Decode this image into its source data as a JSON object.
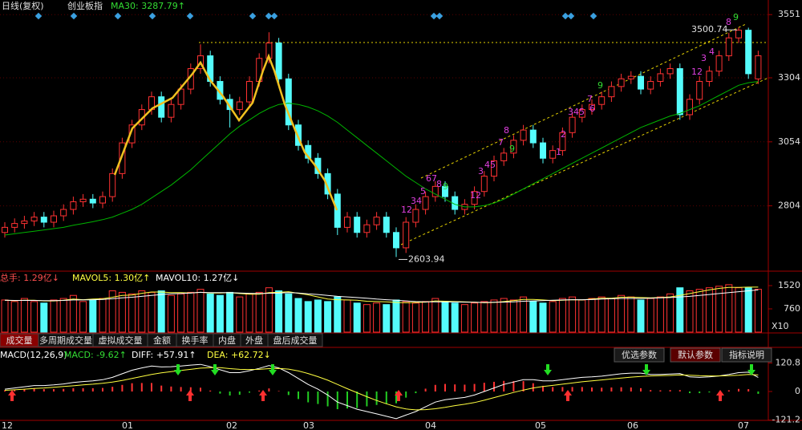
{
  "header": {
    "period": "日线(复权)",
    "name": "创业板指",
    "ma_label": "MA30: 3287.79↑"
  },
  "tabs": [
    "成交量",
    "多周期成交量",
    "虚拟成交量",
    "金额",
    "换手率",
    "内盘",
    "外盘",
    "盘后成交量"
  ],
  "buttons": [
    "优选参数",
    "默认参数",
    "指标说明"
  ],
  "chart_data": [
    {
      "type": "candlestick",
      "ylim": [
        2552,
        3608
      ],
      "yticks": [
        2804,
        3054,
        3304,
        3551
      ],
      "up_color": "#ff3232",
      "down_color": "#54fcfc",
      "x_labels": [
        "12",
        "01",
        "02",
        "03",
        "04",
        "05",
        "06",
        "07"
      ],
      "open": [
        2700,
        2720,
        2735,
        2745,
        2760,
        2740,
        2765,
        2790,
        2820,
        2830,
        2815,
        2840,
        2930,
        3050,
        3120,
        3180,
        3230,
        3150,
        3200,
        3260,
        3340,
        3390,
        3290,
        3220,
        3180,
        3210,
        3290,
        3380,
        3440,
        3300,
        3120,
        3040,
        2990,
        2930,
        2850,
        2720,
        2760,
        2700,
        2730,
        2760,
        2700,
        2640,
        2740,
        2790,
        2840,
        2880,
        2840,
        2790,
        2810,
        2860,
        2920,
        2980,
        3010,
        3060,
        3100,
        3050,
        2990,
        3020,
        3090,
        3150,
        3180,
        3200,
        3230,
        3270,
        3300,
        3310,
        3260,
        3290,
        3320,
        3340,
        3160,
        3220,
        3290,
        3330,
        3390,
        3460,
        3490,
        3300
      ],
      "high": [
        2740,
        2755,
        2765,
        2780,
        2780,
        2785,
        2810,
        2840,
        2850,
        2850,
        2860,
        2950,
        3070,
        3140,
        3200,
        3250,
        3250,
        3220,
        3280,
        3360,
        3435,
        3410,
        3310,
        3240,
        3230,
        3310,
        3400,
        3482,
        3460,
        3320,
        3140,
        3060,
        3010,
        2950,
        2870,
        2780,
        2780,
        2750,
        2780,
        2780,
        2720,
        2760,
        2810,
        2860,
        2900,
        2900,
        2860,
        2830,
        2880,
        2940,
        3000,
        3030,
        3080,
        3120,
        3120,
        3070,
        3040,
        3110,
        3170,
        3200,
        3220,
        3250,
        3290,
        3320,
        3330,
        3330,
        3310,
        3340,
        3360,
        3360,
        3240,
        3310,
        3350,
        3410,
        3480,
        3500.74,
        3500,
        3410
      ],
      "low": [
        2680,
        2700,
        2715,
        2725,
        2720,
        2720,
        2745,
        2770,
        2800,
        2795,
        2795,
        2820,
        2910,
        3030,
        3100,
        3160,
        3130,
        3130,
        3180,
        3240,
        3320,
        3270,
        3200,
        3110,
        3160,
        3190,
        3270,
        3360,
        3280,
        3100,
        3020,
        2970,
        2910,
        2830,
        2690,
        2700,
        2680,
        2680,
        2710,
        2680,
        2603.94,
        2620,
        2720,
        2770,
        2820,
        2820,
        2770,
        2770,
        2790,
        2840,
        2900,
        2960,
        2990,
        3040,
        3030,
        2970,
        2970,
        3000,
        3070,
        3130,
        3160,
        3180,
        3210,
        3250,
        3280,
        3240,
        3240,
        3270,
        3300,
        3140,
        3140,
        3200,
        3270,
        3310,
        3370,
        3440,
        3300,
        3280
      ],
      "close": [
        2720,
        2735,
        2745,
        2760,
        2740,
        2765,
        2790,
        2820,
        2830,
        2815,
        2840,
        2930,
        3050,
        3120,
        3180,
        3230,
        3150,
        3200,
        3260,
        3340,
        3390,
        3290,
        3220,
        3180,
        3210,
        3290,
        3380,
        3440,
        3300,
        3120,
        3040,
        2990,
        2930,
        2850,
        2720,
        2760,
        2700,
        2730,
        2760,
        2700,
        2640,
        2740,
        2790,
        2840,
        2880,
        2840,
        2790,
        2810,
        2860,
        2920,
        2980,
        3010,
        3060,
        3100,
        3050,
        2990,
        3020,
        3090,
        3150,
        3180,
        3200,
        3230,
        3270,
        3300,
        3310,
        3260,
        3290,
        3320,
        3340,
        3160,
        3220,
        3290,
        3330,
        3390,
        3460,
        3490,
        3320,
        3390
      ],
      "ma": {
        "color": "#00b400",
        "values": [
          2690,
          2695,
          2700,
          2705,
          2710,
          2715,
          2720,
          2728,
          2735,
          2742,
          2750,
          2760,
          2775,
          2790,
          2810,
          2835,
          2860,
          2885,
          2915,
          2945,
          2980,
          3015,
          3050,
          3085,
          3115,
          3140,
          3165,
          3185,
          3200,
          3205,
          3200,
          3190,
          3175,
          3155,
          3130,
          3100,
          3070,
          3040,
          3010,
          2980,
          2950,
          2920,
          2895,
          2870,
          2850,
          2830,
          2810,
          2800,
          2800,
          2805,
          2815,
          2830,
          2850,
          2870,
          2890,
          2910,
          2930,
          2950,
          2970,
          2990,
          3010,
          3030,
          3050,
          3070,
          3090,
          3110,
          3125,
          3140,
          3155,
          3165,
          3180,
          3195,
          3215,
          3235,
          3255,
          3275,
          3285,
          3290
        ]
      },
      "td_counts": [
        {
          "text": "12",
          "color": "#e040e0"
        },
        {
          "text": "34",
          "color": "#e040e0"
        },
        {
          "text": "5",
          "color": "#e040e0"
        },
        {
          "text": "67",
          "color": "#e040e0"
        },
        {
          "text": "8",
          "color": "#e040e0"
        },
        {
          "text": "9",
          "color": "#33dd33"
        },
        {
          "text": "12",
          "color": "#e040e0"
        },
        {
          "text": "3",
          "color": "#e040e0"
        },
        {
          "text": "45",
          "color": "#e040e0"
        },
        {
          "text": "7",
          "color": "#e040e0"
        },
        {
          "text": "8",
          "color": "#e040e0"
        },
        {
          "text": "9",
          "color": "#33dd33"
        },
        {
          "text": "1",
          "color": "#e040e0"
        },
        {
          "text": "2",
          "color": "#e040e0"
        },
        {
          "text": "345",
          "color": "#e040e0"
        },
        {
          "text": "6",
          "color": "#e040e0"
        },
        {
          "text": "7",
          "color": "#e040e0"
        },
        {
          "text": "9",
          "color": "#33dd33"
        },
        {
          "text": "12",
          "color": "#e040e0"
        },
        {
          "text": "3",
          "color": "#e040e0"
        },
        {
          "text": "4",
          "color": "#e040e0"
        },
        {
          "text": "8",
          "color": "#e040e0"
        },
        {
          "text": "9",
          "color": "#33dd33"
        }
      ]
    },
    {
      "type": "volume",
      "header": [
        {
          "text": "总手: 1.29亿↓",
          "color": "#ff5050"
        },
        {
          "text": "MAVOL5: 1.30亿↑",
          "color": "#ffff40"
        },
        {
          "text": "MAVOL10: 1.27亿↓",
          "color": "#ffffff"
        }
      ],
      "ylim": [
        0,
        1940
      ],
      "yticks": [
        760,
        1520
      ],
      "unit_label": "X10",
      "values": [
        1050,
        1000,
        1100,
        1000,
        950,
        1050,
        1100,
        1200,
        1000,
        1050,
        1100,
        1350,
        1300,
        1250,
        1350,
        1300,
        1350,
        1200,
        1250,
        1300,
        1400,
        1250,
        1200,
        1300,
        1150,
        1250,
        1300,
        1450,
        1350,
        1250,
        1100,
        1000,
        1050,
        1000,
        1150,
        1050,
        950,
        900,
        950,
        900,
        1050,
        1000,
        950,
        1000,
        1100,
        1000,
        950,
        900,
        950,
        1000,
        1050,
        1100,
        1050,
        1150,
        1000,
        950,
        1000,
        1100,
        1150,
        1050,
        1100,
        1150,
        1100,
        1200,
        1150,
        1050,
        1100,
        1150,
        1250,
        1450,
        1350,
        1400,
        1450,
        1500,
        1550,
        1450,
        1450,
        1400
      ],
      "series": [
        {
          "color": "#ffff40",
          "values": [
            1040,
            1030,
            1040,
            1040,
            1020,
            1020,
            1040,
            1080,
            1060,
            1080,
            1090,
            1140,
            1200,
            1210,
            1270,
            1310,
            1310,
            1290,
            1290,
            1280,
            1300,
            1280,
            1280,
            1290,
            1260,
            1240,
            1240,
            1290,
            1300,
            1320,
            1270,
            1220,
            1150,
            1080,
            1060,
            1050,
            1040,
            1010,
            1000,
            990,
            970,
            960,
            970,
            980,
            1020,
            1010,
            1000,
            990,
            980,
            960,
            970,
            1000,
            1030,
            1070,
            1070,
            1050,
            1030,
            1040,
            1060,
            1050,
            1080,
            1110,
            1110,
            1140,
            1140,
            1130,
            1120,
            1130,
            1150,
            1200,
            1260,
            1320,
            1380,
            1430,
            1460,
            1460,
            1470,
            1470
          ]
        },
        {
          "color": "#ffffff",
          "values": [
            1040,
            1035,
            1035,
            1035,
            1030,
            1030,
            1035,
            1050,
            1050,
            1060,
            1070,
            1090,
            1120,
            1140,
            1170,
            1200,
            1230,
            1250,
            1260,
            1280,
            1300,
            1290,
            1290,
            1290,
            1280,
            1270,
            1260,
            1270,
            1280,
            1290,
            1280,
            1250,
            1230,
            1200,
            1170,
            1150,
            1130,
            1110,
            1080,
            1060,
            1040,
            1020,
            1000,
            990,
            990,
            985,
            985,
            980,
            975,
            970,
            975,
            980,
            990,
            1010,
            1020,
            1030,
            1040,
            1050,
            1060,
            1060,
            1065,
            1080,
            1090,
            1100,
            1100,
            1100,
            1110,
            1120,
            1130,
            1150,
            1170,
            1200,
            1230,
            1260,
            1290,
            1320,
            1350,
            1380
          ]
        }
      ]
    },
    {
      "type": "macd",
      "header": [
        {
          "text": "MACD(12,26,9)",
          "color": "#ffffff"
        },
        {
          "text": "MACD: -9.62↑",
          "color": "#33dd33"
        },
        {
          "text": "DIFF: +57.91↑",
          "color": "#ffffff"
        },
        {
          "text": "DEA: +62.72↓",
          "color": "#ffff40"
        }
      ],
      "ylim": [
        -122.4,
        176.8
      ],
      "yticks": [
        -121.2,
        0,
        120.8
      ],
      "up_color": "#ff3232",
      "down_color": "#22cc22",
      "values": [
        5,
        8,
        10,
        12,
        10,
        10,
        11,
        14,
        14,
        14,
        15,
        20,
        28,
        35,
        36,
        36,
        25,
        21,
        19,
        18,
        16,
        4,
        -9,
        -17,
        -14,
        -5,
        4,
        13,
        2,
        -15,
        -32,
        -46,
        -53,
        -63,
        -75,
        -72,
        -70,
        -63,
        -57,
        -53,
        -50,
        -26,
        -7,
        12,
        28,
        32,
        30,
        29,
        32,
        37,
        41,
        45,
        44,
        44,
        35,
        24,
        19,
        19,
        19,
        19,
        17,
        16,
        17,
        18,
        17,
        14,
        6,
        5,
        6,
        6,
        -7,
        -7,
        -4,
        0,
        5,
        11,
        10,
        -10
      ],
      "series": [
        {
          "color": "#ffffff",
          "values": [
            10,
            15,
            20,
            25,
            25,
            28,
            32,
            38,
            42,
            45,
            50,
            60,
            75,
            90,
            100,
            108,
            104,
            105,
            108,
            112,
            115,
            105,
            92,
            80,
            80,
            88,
            98,
            110,
            100,
            80,
            55,
            30,
            10,
            -15,
            -45,
            -60,
            -75,
            -85,
            -95,
            -105,
            -115,
            -100,
            -85,
            -65,
            -45,
            -35,
            -30,
            -25,
            -15,
            0,
            15,
            30,
            40,
            50,
            50,
            45,
            45,
            50,
            55,
            60,
            62,
            65,
            70,
            75,
            78,
            78,
            72,
            72,
            74,
            76,
            62,
            60,
            62,
            66,
            72,
            80,
            82,
            60
          ]
        },
        {
          "color": "#ffff40",
          "values": [
            5,
            7,
            10,
            13,
            15,
            18,
            21,
            24,
            28,
            31,
            35,
            40,
            47,
            55,
            64,
            72,
            79,
            84,
            89,
            94,
            99,
            101,
            101,
            97,
            94,
            93,
            94,
            97,
            98,
            95,
            87,
            76,
            63,
            48,
            30,
            12,
            -5,
            -22,
            -38,
            -52,
            -65,
            -74,
            -78,
            -77,
            -73,
            -67,
            -60,
            -54,
            -47,
            -37,
            -26,
            -15,
            -4,
            6,
            15,
            21,
            26,
            31,
            36,
            41,
            45,
            49,
            53,
            57,
            61,
            64,
            66,
            67,
            68,
            70,
            69,
            67,
            66,
            66,
            67,
            69,
            72,
            70
          ]
        }
      ]
    }
  ]
}
